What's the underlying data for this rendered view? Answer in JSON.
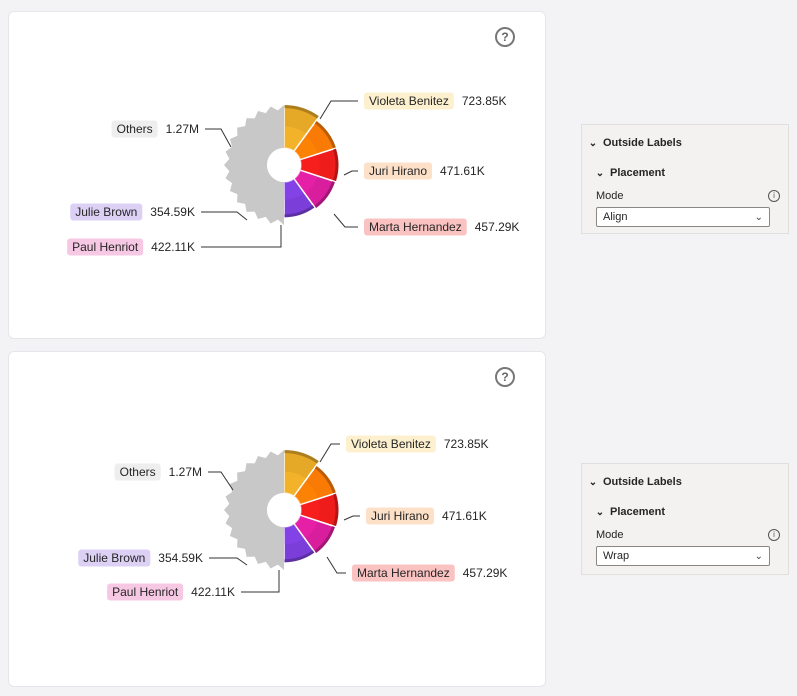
{
  "chart_data": [
    {
      "type": "pie",
      "variant": "donut-radial",
      "total_slices": 6,
      "slices": [
        {
          "name": "Violeta Benitez",
          "value": 723.85,
          "display": "723.85K",
          "color": "#e5a827",
          "label_bg": "#fdf0cf"
        },
        {
          "name": "Juri Hirano",
          "value": 471.61,
          "display": "471.61K",
          "color": "#f97a05",
          "label_bg": "#fde0c8"
        },
        {
          "name": "Marta Hernandez",
          "value": 457.29,
          "display": "457.29K",
          "color": "#ef1c1c",
          "label_bg": "#fbc2c2"
        },
        {
          "name": "Paul Henriot",
          "value": 422.11,
          "display": "422.11K",
          "color": "#d81e9c",
          "label_bg": "#f7c8e4"
        },
        {
          "name": "Julie Brown",
          "value": 354.59,
          "display": "354.59K",
          "color": "#7b3ed8",
          "label_bg": "#ddd0f5"
        },
        {
          "name": "Others",
          "value": 1270,
          "display": "1.27M",
          "color": "#c8c8c8",
          "label_bg": "#eeeeee"
        }
      ],
      "label_mode": "Align"
    },
    {
      "type": "pie",
      "variant": "donut-radial",
      "total_slices": 6,
      "slices": [
        {
          "name": "Violeta Benitez",
          "value": 723.85,
          "display": "723.85K",
          "color": "#e5a827",
          "label_bg": "#fdf0cf"
        },
        {
          "name": "Juri Hirano",
          "value": 471.61,
          "display": "471.61K",
          "color": "#f97a05",
          "label_bg": "#fde0c8"
        },
        {
          "name": "Marta Hernandez",
          "value": 457.29,
          "display": "457.29K",
          "color": "#ef1c1c",
          "label_bg": "#fbc2c2"
        },
        {
          "name": "Paul Henriot",
          "value": 422.11,
          "display": "422.11K",
          "color": "#d81e9c",
          "label_bg": "#f7c8e4"
        },
        {
          "name": "Julie Brown",
          "value": 354.59,
          "display": "354.59K",
          "color": "#7b3ed8",
          "label_bg": "#ddd0f5"
        },
        {
          "name": "Others",
          "value": 1270,
          "display": "1.27M",
          "color": "#c8c8c8",
          "label_bg": "#eeeeee"
        }
      ],
      "label_mode": "Wrap"
    }
  ],
  "help_glyph": "?",
  "panels": [
    {
      "section": "Outside Labels",
      "subsection": "Placement",
      "field_label": "Mode",
      "value": "Align"
    },
    {
      "section": "Outside Labels",
      "subsection": "Placement",
      "field_label": "Mode",
      "value": "Wrap"
    }
  ],
  "icons": {
    "help": "help-circle-icon",
    "chevron": "chevron-down-icon",
    "info": "info-icon"
  }
}
